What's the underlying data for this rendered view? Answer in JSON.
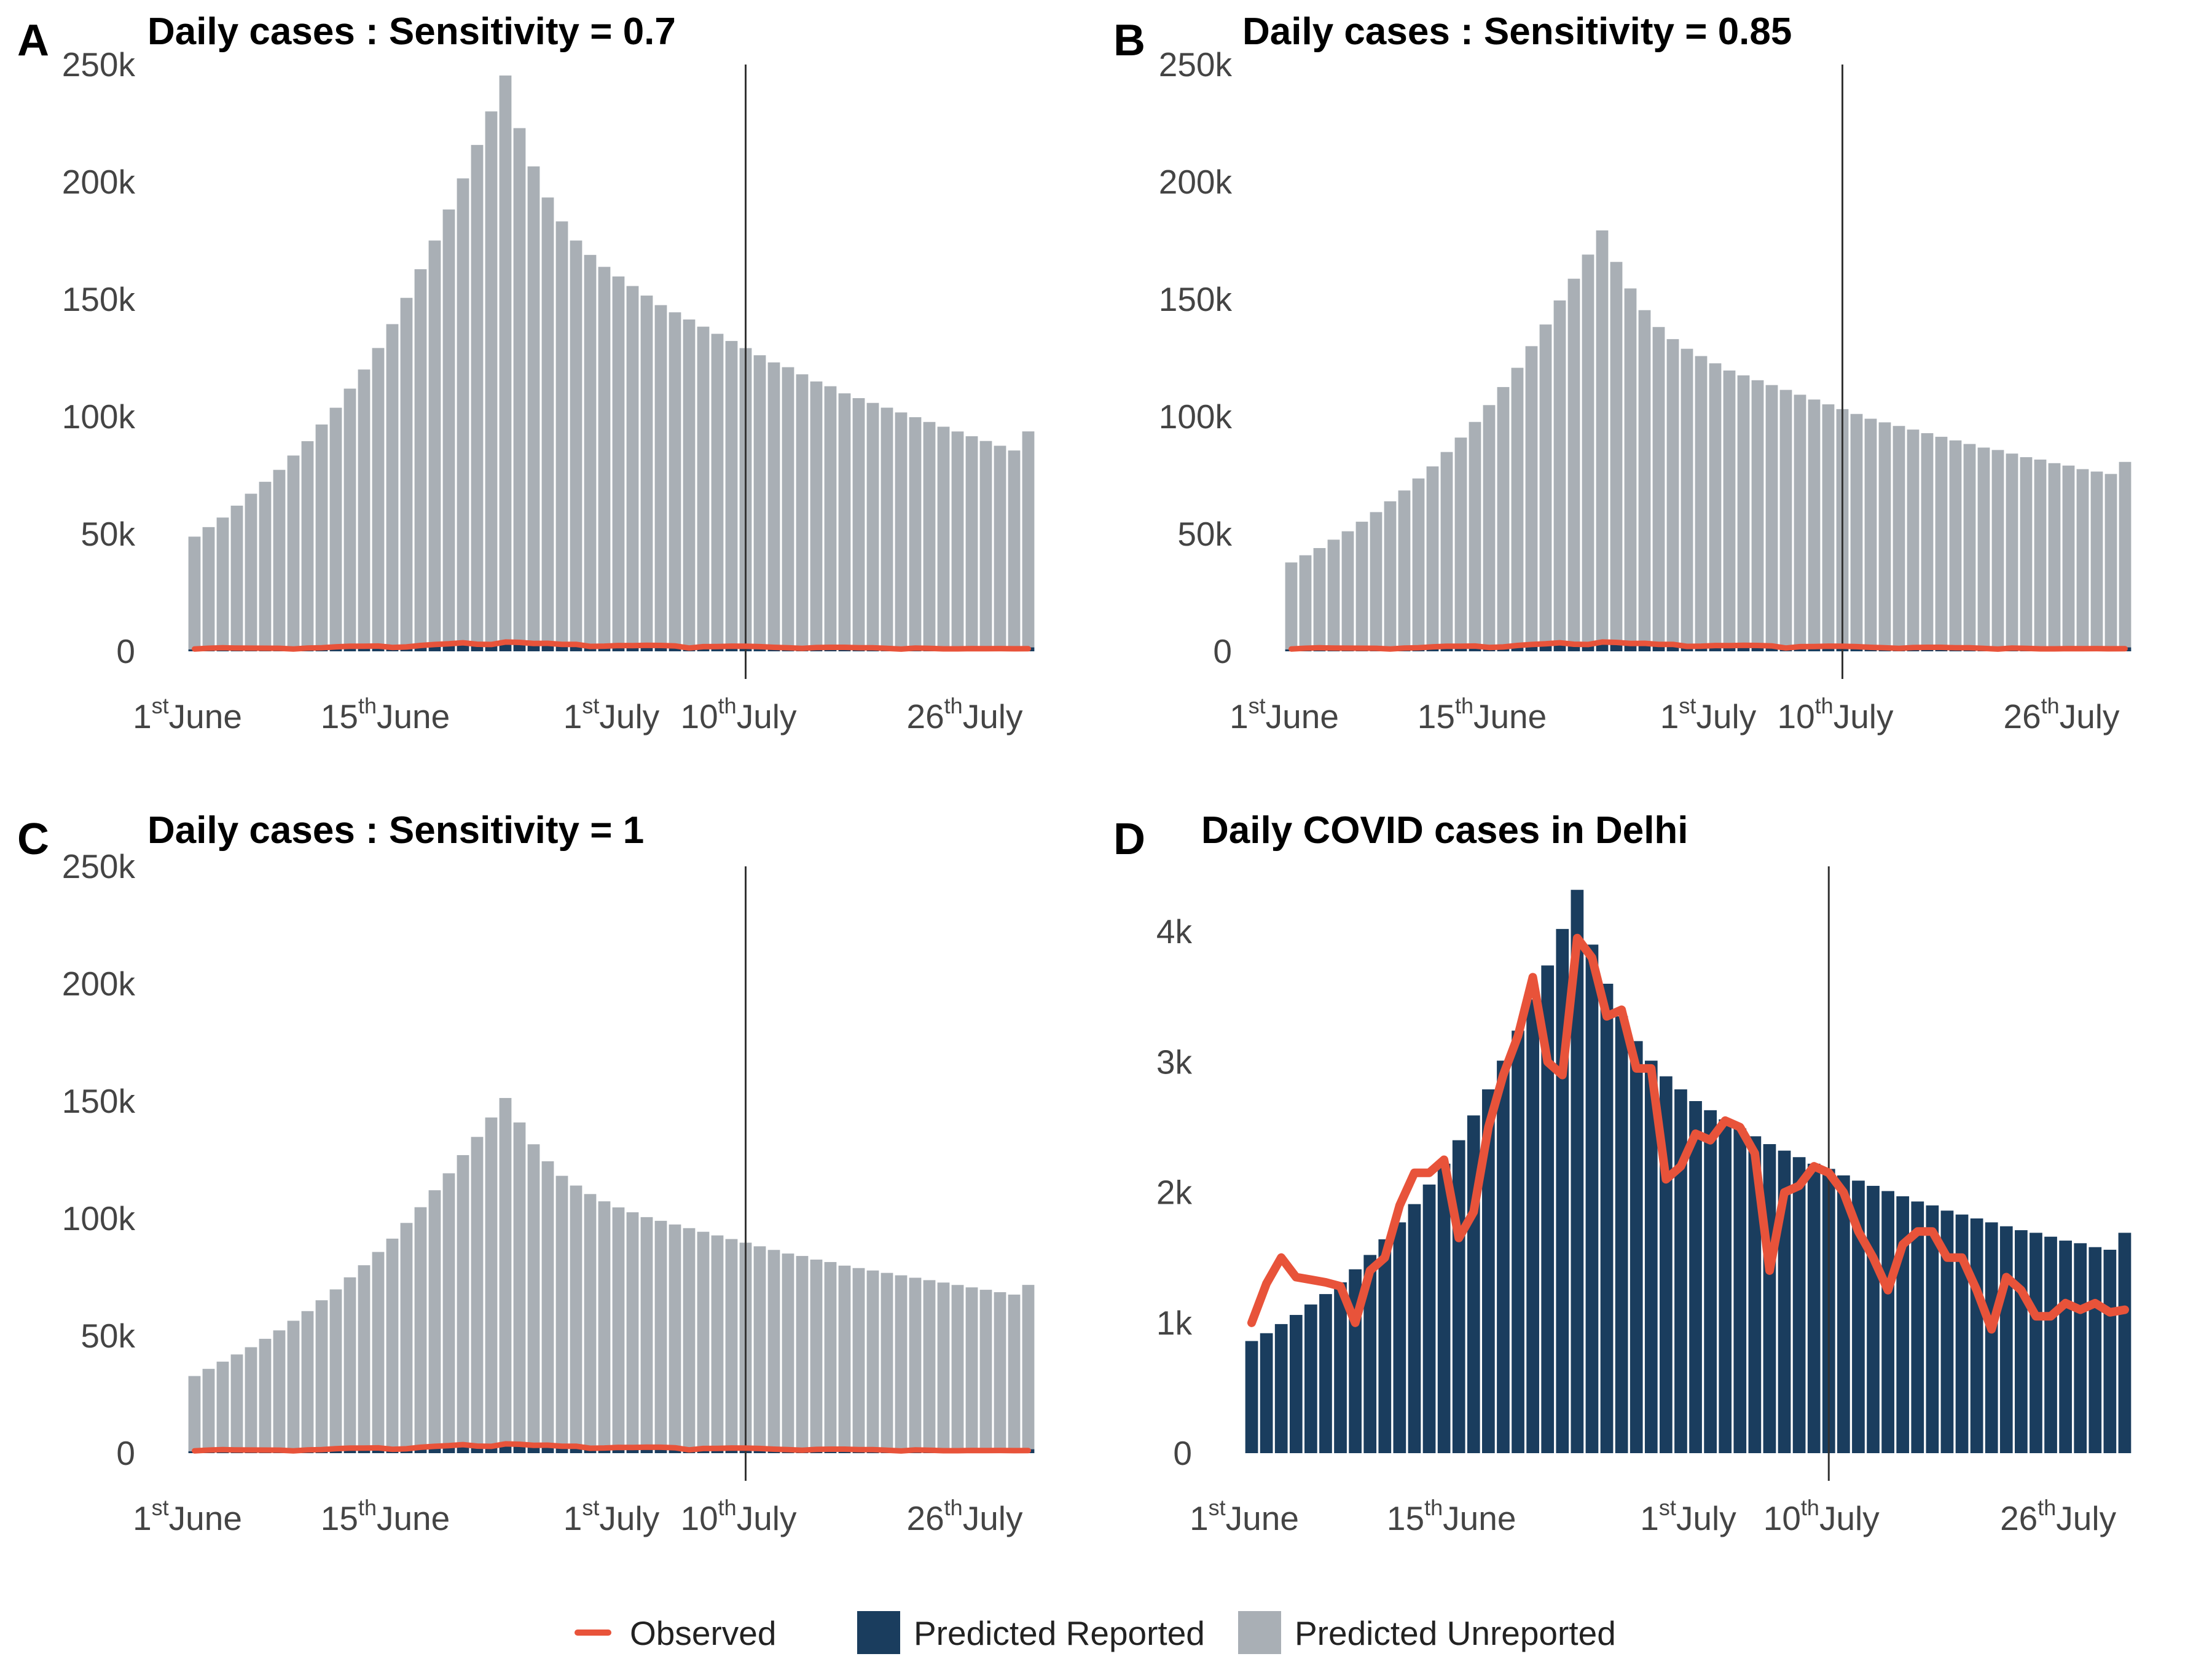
{
  "legend": {
    "observed": "Observed",
    "reported": "Predicted Reported",
    "unreported": "Predicted Unreported"
  },
  "colors": {
    "observed": "#E8533A",
    "reported": "#1A3D5E",
    "unreported": "#A9AFB5",
    "vline": "#333333"
  },
  "chart_data": [
    {
      "panel": "A",
      "type": "bar",
      "title": "Daily cases : Sensitivity = 0.7",
      "stacked": true,
      "ylim": [
        0,
        250000
      ],
      "yticks": [
        0,
        50000,
        100000,
        150000,
        200000,
        250000
      ],
      "ytick_labels": [
        "0",
        "50k",
        "100k",
        "150k",
        "200k",
        "250k"
      ],
      "xticks": [
        {
          "day": 1,
          "num": "1",
          "sup": "st",
          "text": "June"
        },
        {
          "day": 15,
          "num": "15",
          "sup": "th",
          "text": "June"
        },
        {
          "day": 31,
          "num": "1",
          "sup": "st",
          "text": "July"
        },
        {
          "day": 40,
          "num": "10",
          "sup": "th",
          "text": "July"
        },
        {
          "day": 56,
          "num": "26",
          "sup": "th",
          "text": "July"
        }
      ],
      "vline_day": 40,
      "x_range": [
        1,
        60
      ],
      "series": [
        {
          "name": "Predicted Unreported",
          "values": [
            48000,
            52000,
            56000,
            61000,
            66000,
            71000,
            76000,
            82000,
            88000,
            95000,
            102000,
            110000,
            118000,
            127000,
            137000,
            148000,
            160000,
            172000,
            185000,
            198000,
            212000,
            226000,
            241000,
            219000,
            203000,
            190000,
            180000,
            172000,
            166000,
            161000,
            157000,
            153000,
            149000,
            145000,
            142000,
            139000,
            136000,
            133000,
            130000,
            127000,
            124000,
            121000,
            119000,
            116000,
            113000,
            111000,
            108000,
            106000,
            104000,
            102000,
            100000,
            98000,
            96000,
            94000,
            92000,
            90000,
            88000,
            86000,
            84000,
            92000
          ]
        },
        {
          "name": "Predicted Reported",
          "values": [
            860,
            920,
            990,
            1060,
            1140,
            1220,
            1310,
            1410,
            1520,
            1640,
            1770,
            1910,
            2060,
            2220,
            2400,
            2590,
            2790,
            3010,
            3240,
            3480,
            3740,
            4020,
            4320,
            3900,
            3600,
            3350,
            3160,
            3010,
            2890,
            2790,
            2700,
            2630,
            2560,
            2490,
            2430,
            2370,
            2320,
            2270,
            2220,
            2180,
            2130,
            2090,
            2050,
            2010,
            1970,
            1930,
            1900,
            1860,
            1830,
            1800,
            1770,
            1740,
            1710,
            1690,
            1660,
            1630,
            1610,
            1580,
            1560,
            1690
          ]
        },
        {
          "name": "Observed",
          "values": [
            1000,
            1300,
            1500,
            1350,
            1330,
            1310,
            1280,
            1000,
            1400,
            1500,
            1900,
            2150,
            2150,
            2250,
            1650,
            1850,
            2500,
            2900,
            3200,
            3650,
            3000,
            2900,
            3950,
            3800,
            3350,
            3400,
            2950,
            2950,
            2100,
            2200,
            2450,
            2400,
            2550,
            2500,
            2300,
            1400,
            2000,
            2050,
            2200,
            2150,
            2000,
            1700,
            1500,
            1250,
            1600,
            1700,
            1700,
            1500,
            1500,
            1250,
            950,
            1350,
            1250,
            1050,
            1050,
            1150,
            1100,
            1150,
            1080,
            1100
          ]
        }
      ]
    },
    {
      "panel": "B",
      "type": "bar",
      "title": "Daily cases : Sensitivity = 0.85",
      "stacked": true,
      "ylim": [
        0,
        250000
      ],
      "yticks": [
        0,
        50000,
        100000,
        150000,
        200000,
        250000
      ],
      "ytick_labels": [
        "0",
        "50k",
        "100k",
        "150k",
        "200k",
        "250k"
      ],
      "xticks": [
        {
          "day": 1,
          "num": "1",
          "sup": "st",
          "text": "June"
        },
        {
          "day": 15,
          "num": "15",
          "sup": "th",
          "text": "June"
        },
        {
          "day": 31,
          "num": "1",
          "sup": "st",
          "text": "July"
        },
        {
          "day": 40,
          "num": "10",
          "sup": "th",
          "text": "July"
        },
        {
          "day": 56,
          "num": "26",
          "sup": "th",
          "text": "July"
        }
      ],
      "vline_day": 40,
      "x_range": [
        1,
        60
      ],
      "series": [
        {
          "name": "Predicted Unreported",
          "values": [
            37000,
            40000,
            43000,
            46500,
            50000,
            54000,
            58000,
            62500,
            67000,
            72000,
            77000,
            83000,
            89000,
            95500,
            102500,
            110000,
            118000,
            127000,
            136000,
            146000,
            155000,
            165000,
            175000,
            162000,
            151000,
            142000,
            135000,
            130000,
            126000,
            123000,
            120000,
            117000,
            115000,
            113000,
            111000,
            109000,
            107000,
            105000,
            103000,
            101000,
            99000,
            97000,
            95500,
            94000,
            92500,
            91000,
            89500,
            88000,
            86500,
            85000,
            84000,
            82500,
            81000,
            80000,
            78500,
            77500,
            76000,
            75000,
            74000,
            79000
          ]
        },
        {
          "name": "Predicted Reported",
          "values": [
            860,
            920,
            990,
            1060,
            1140,
            1220,
            1310,
            1410,
            1520,
            1640,
            1770,
            1910,
            2060,
            2220,
            2400,
            2590,
            2790,
            3010,
            3240,
            3480,
            3740,
            4020,
            4320,
            3900,
            3600,
            3350,
            3160,
            3010,
            2890,
            2790,
            2700,
            2630,
            2560,
            2490,
            2430,
            2370,
            2320,
            2270,
            2220,
            2180,
            2130,
            2090,
            2050,
            2010,
            1970,
            1930,
            1900,
            1860,
            1830,
            1800,
            1770,
            1740,
            1710,
            1690,
            1660,
            1630,
            1610,
            1580,
            1560,
            1690
          ]
        },
        {
          "name": "Observed",
          "values": [
            1000,
            1300,
            1500,
            1350,
            1330,
            1310,
            1280,
            1000,
            1400,
            1500,
            1900,
            2150,
            2150,
            2250,
            1650,
            1850,
            2500,
            2900,
            3200,
            3650,
            3000,
            2900,
            3950,
            3800,
            3350,
            3400,
            2950,
            2950,
            2100,
            2200,
            2450,
            2400,
            2550,
            2500,
            2300,
            1400,
            2000,
            2050,
            2200,
            2150,
            2000,
            1700,
            1500,
            1250,
            1600,
            1700,
            1700,
            1500,
            1500,
            1250,
            950,
            1350,
            1250,
            1050,
            1050,
            1150,
            1100,
            1150,
            1080,
            1100
          ]
        }
      ]
    },
    {
      "panel": "C",
      "type": "bar",
      "title": "Daily cases : Sensitivity = 1",
      "stacked": true,
      "ylim": [
        0,
        250000
      ],
      "yticks": [
        0,
        50000,
        100000,
        150000,
        200000,
        250000
      ],
      "ytick_labels": [
        "0",
        "50k",
        "100k",
        "150k",
        "200k",
        "250k"
      ],
      "xticks": [
        {
          "day": 1,
          "num": "1",
          "sup": "st",
          "text": "June"
        },
        {
          "day": 15,
          "num": "15",
          "sup": "th",
          "text": "June"
        },
        {
          "day": 31,
          "num": "1",
          "sup": "st",
          "text": "July"
        },
        {
          "day": 40,
          "num": "10",
          "sup": "th",
          "text": "July"
        },
        {
          "day": 56,
          "num": "26",
          "sup": "th",
          "text": "July"
        }
      ],
      "vline_day": 40,
      "x_range": [
        1,
        60
      ],
      "series": [
        {
          "name": "Predicted Unreported",
          "values": [
            32000,
            35000,
            38000,
            41000,
            44000,
            47500,
            51000,
            55000,
            59000,
            63500,
            68000,
            73000,
            78000,
            83500,
            89000,
            95500,
            102000,
            109000,
            116000,
            123500,
            131000,
            139000,
            147000,
            137000,
            128000,
            121000,
            115000,
            111000,
            107500,
            104500,
            102000,
            100000,
            98000,
            96500,
            95000,
            93500,
            92000,
            90500,
            89000,
            87500,
            86000,
            84500,
            83000,
            82000,
            80500,
            79500,
            78000,
            77000,
            76000,
            75000,
            74000,
            73000,
            72000,
            71000,
            70000,
            69000,
            68000,
            67000,
            66000,
            70000
          ]
        },
        {
          "name": "Predicted Reported",
          "values": [
            860,
            920,
            990,
            1060,
            1140,
            1220,
            1310,
            1410,
            1520,
            1640,
            1770,
            1910,
            2060,
            2220,
            2400,
            2590,
            2790,
            3010,
            3240,
            3480,
            3740,
            4020,
            4320,
            3900,
            3600,
            3350,
            3160,
            3010,
            2890,
            2790,
            2700,
            2630,
            2560,
            2490,
            2430,
            2370,
            2320,
            2270,
            2220,
            2180,
            2130,
            2090,
            2050,
            2010,
            1970,
            1930,
            1900,
            1860,
            1830,
            1800,
            1770,
            1740,
            1710,
            1690,
            1660,
            1630,
            1610,
            1580,
            1560,
            1690
          ]
        },
        {
          "name": "Observed",
          "values": [
            1000,
            1300,
            1500,
            1350,
            1330,
            1310,
            1280,
            1000,
            1400,
            1500,
            1900,
            2150,
            2150,
            2250,
            1650,
            1850,
            2500,
            2900,
            3200,
            3650,
            3000,
            2900,
            3950,
            3800,
            3350,
            3400,
            2950,
            2950,
            2100,
            2200,
            2450,
            2400,
            2550,
            2500,
            2300,
            1400,
            2000,
            2050,
            2200,
            2150,
            2000,
            1700,
            1500,
            1250,
            1600,
            1700,
            1700,
            1500,
            1500,
            1250,
            950,
            1350,
            1250,
            1050,
            1050,
            1150,
            1100,
            1150,
            1080,
            1100
          ]
        }
      ]
    },
    {
      "panel": "D",
      "type": "bar",
      "title": "Daily COVID cases in Delhi",
      "stacked": false,
      "ylim": [
        0,
        4500
      ],
      "yticks": [
        0,
        1000,
        2000,
        3000,
        4000
      ],
      "ytick_labels": [
        "0",
        "1k",
        "2k",
        "3k",
        "4k"
      ],
      "xticks": [
        {
          "day": 1,
          "num": "1",
          "sup": "st",
          "text": "June"
        },
        {
          "day": 15,
          "num": "15",
          "sup": "th",
          "text": "June"
        },
        {
          "day": 31,
          "num": "1",
          "sup": "st",
          "text": "July"
        },
        {
          "day": 40,
          "num": "10",
          "sup": "th",
          "text": "July"
        },
        {
          "day": 56,
          "num": "26",
          "sup": "th",
          "text": "July"
        }
      ],
      "vline_day": 40,
      "x_range": [
        1,
        60
      ],
      "series": [
        {
          "name": "Predicted Reported",
          "values": [
            860,
            920,
            990,
            1060,
            1140,
            1220,
            1310,
            1410,
            1520,
            1640,
            1770,
            1910,
            2060,
            2220,
            2400,
            2590,
            2790,
            3010,
            3240,
            3480,
            3740,
            4020,
            4320,
            3900,
            3600,
            3350,
            3160,
            3010,
            2890,
            2790,
            2700,
            2630,
            2560,
            2490,
            2430,
            2370,
            2320,
            2270,
            2220,
            2180,
            2130,
            2090,
            2050,
            2010,
            1970,
            1930,
            1900,
            1860,
            1830,
            1800,
            1770,
            1740,
            1710,
            1690,
            1660,
            1630,
            1610,
            1580,
            1560,
            1690
          ]
        },
        {
          "name": "Observed",
          "values": [
            1000,
            1300,
            1500,
            1350,
            1330,
            1310,
            1280,
            1000,
            1400,
            1500,
            1900,
            2150,
            2150,
            2250,
            1650,
            1850,
            2500,
            2900,
            3200,
            3650,
            3000,
            2900,
            3950,
            3800,
            3350,
            3400,
            2950,
            2950,
            2100,
            2200,
            2450,
            2400,
            2550,
            2500,
            2300,
            1400,
            2000,
            2050,
            2200,
            2150,
            2000,
            1700,
            1500,
            1250,
            1600,
            1700,
            1700,
            1500,
            1500,
            1250,
            950,
            1350,
            1250,
            1050,
            1050,
            1150,
            1100,
            1150,
            1080,
            1100
          ]
        }
      ]
    }
  ]
}
